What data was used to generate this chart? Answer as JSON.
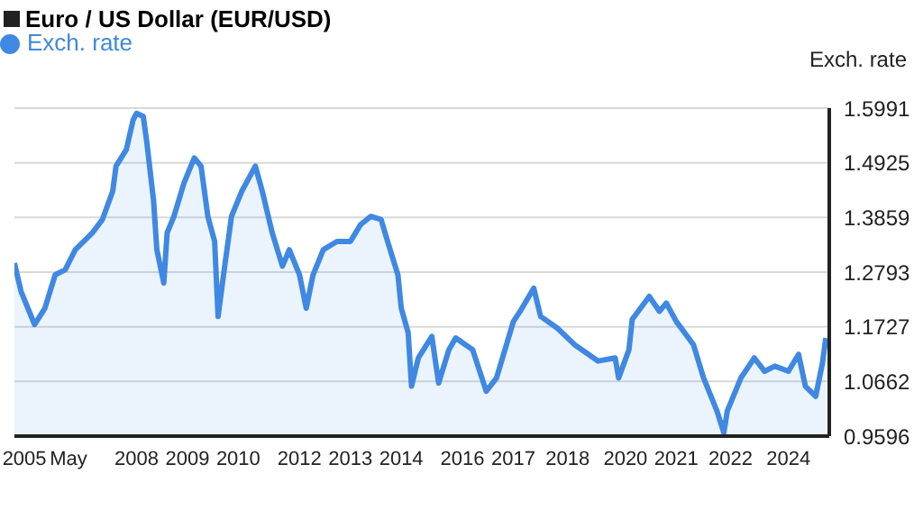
{
  "chart_data": {
    "type": "area",
    "title": "Euro / US Dollar (EUR/USD)",
    "ylabel": "Exch. rate",
    "x": [
      "2005-01",
      "2005-03",
      "2005-07",
      "2005-10",
      "2006-01",
      "2006-04",
      "2006-07",
      "2006-12",
      "2007-03",
      "2007-06",
      "2007-07",
      "2007-10",
      "2007-12",
      "2008-01",
      "2008-03",
      "2008-04",
      "2008-06",
      "2008-07",
      "2008-09",
      "2008-10",
      "2008-12",
      "2009-03",
      "2009-06",
      "2009-08",
      "2009-10",
      "2009-12",
      "2010-01",
      "2010-03",
      "2010-05",
      "2010-08",
      "2010-12",
      "2011-02",
      "2011-05",
      "2011-08",
      "2011-10",
      "2012-01",
      "2012-03",
      "2012-05",
      "2012-08",
      "2012-12",
      "2013-04",
      "2013-07",
      "2013-10",
      "2014-01",
      "2014-03",
      "2014-06",
      "2014-07",
      "2014-09",
      "2014-10",
      "2014-12",
      "2015-04",
      "2015-06",
      "2015-09",
      "2015-11",
      "2016-04",
      "2016-08",
      "2016-11",
      "2017-04",
      "2017-06",
      "2017-10",
      "2017-12",
      "2018-05",
      "2018-10",
      "2019-05",
      "2019-10",
      "2019-11",
      "2020-02",
      "2020-03",
      "2020-08",
      "2020-11",
      "2021-01",
      "2021-04",
      "2021-09",
      "2021-12",
      "2022-04",
      "2022-06",
      "2022-07",
      "2022-11",
      "2023-03",
      "2023-06",
      "2023-09",
      "2024-01",
      "2024-04",
      "2024-06",
      "2024-09",
      "2024-11",
      "2024-12"
    ],
    "series": [
      {
        "name": "Exch. rate",
        "color": "#3f88e3",
        "values": [
          1.297,
          1.242,
          1.177,
          1.209,
          1.274,
          1.284,
          1.323,
          1.356,
          1.382,
          1.437,
          1.486,
          1.518,
          1.576,
          1.589,
          1.583,
          1.534,
          1.42,
          1.323,
          1.258,
          1.356,
          1.388,
          1.453,
          1.502,
          1.486,
          1.388,
          1.339,
          1.193,
          1.291,
          1.388,
          1.437,
          1.486,
          1.437,
          1.356,
          1.291,
          1.323,
          1.274,
          1.209,
          1.274,
          1.323,
          1.339,
          1.339,
          1.372,
          1.388,
          1.382,
          1.339,
          1.274,
          1.209,
          1.161,
          1.057,
          1.112,
          1.154,
          1.063,
          1.128,
          1.151,
          1.128,
          1.047,
          1.073,
          1.183,
          1.203,
          1.248,
          1.193,
          1.17,
          1.138,
          1.106,
          1.112,
          1.073,
          1.128,
          1.187,
          1.232,
          1.203,
          1.219,
          1.183,
          1.138,
          1.073,
          1.008,
          0.966,
          1.008,
          1.073,
          1.112,
          1.086,
          1.096,
          1.086,
          1.119,
          1.057,
          1.037,
          1.102,
          1.151
        ]
      }
    ],
    "xlim": [
      "2005-01",
      "2025-01"
    ],
    "xticks": [
      {
        "value": "2005-04",
        "label": "2005"
      },
      {
        "value": "2006-05",
        "label": "May"
      },
      {
        "value": "2008-01",
        "label": "2008"
      },
      {
        "value": "2009-04",
        "label": "2009"
      },
      {
        "value": "2010-07",
        "label": "2010"
      },
      {
        "value": "2012-01",
        "label": "2012"
      },
      {
        "value": "2013-04",
        "label": "2013"
      },
      {
        "value": "2014-07",
        "label": "2014"
      },
      {
        "value": "2016-01",
        "label": "2016"
      },
      {
        "value": "2017-04",
        "label": "2017"
      },
      {
        "value": "2018-08",
        "label": "2018"
      },
      {
        "value": "2020-01",
        "label": "2020"
      },
      {
        "value": "2021-04",
        "label": "2021"
      },
      {
        "value": "2022-08",
        "label": "2022"
      },
      {
        "value": "2024-01",
        "label": "2024"
      }
    ],
    "ylim": [
      0.9596,
      1.5991
    ],
    "yticks": [
      0.9596,
      1.0662,
      1.1727,
      1.2793,
      1.3859,
      1.4925,
      1.5991
    ],
    "grid": "y",
    "legend": "top left",
    "marker": "none",
    "line_style": "solid"
  }
}
